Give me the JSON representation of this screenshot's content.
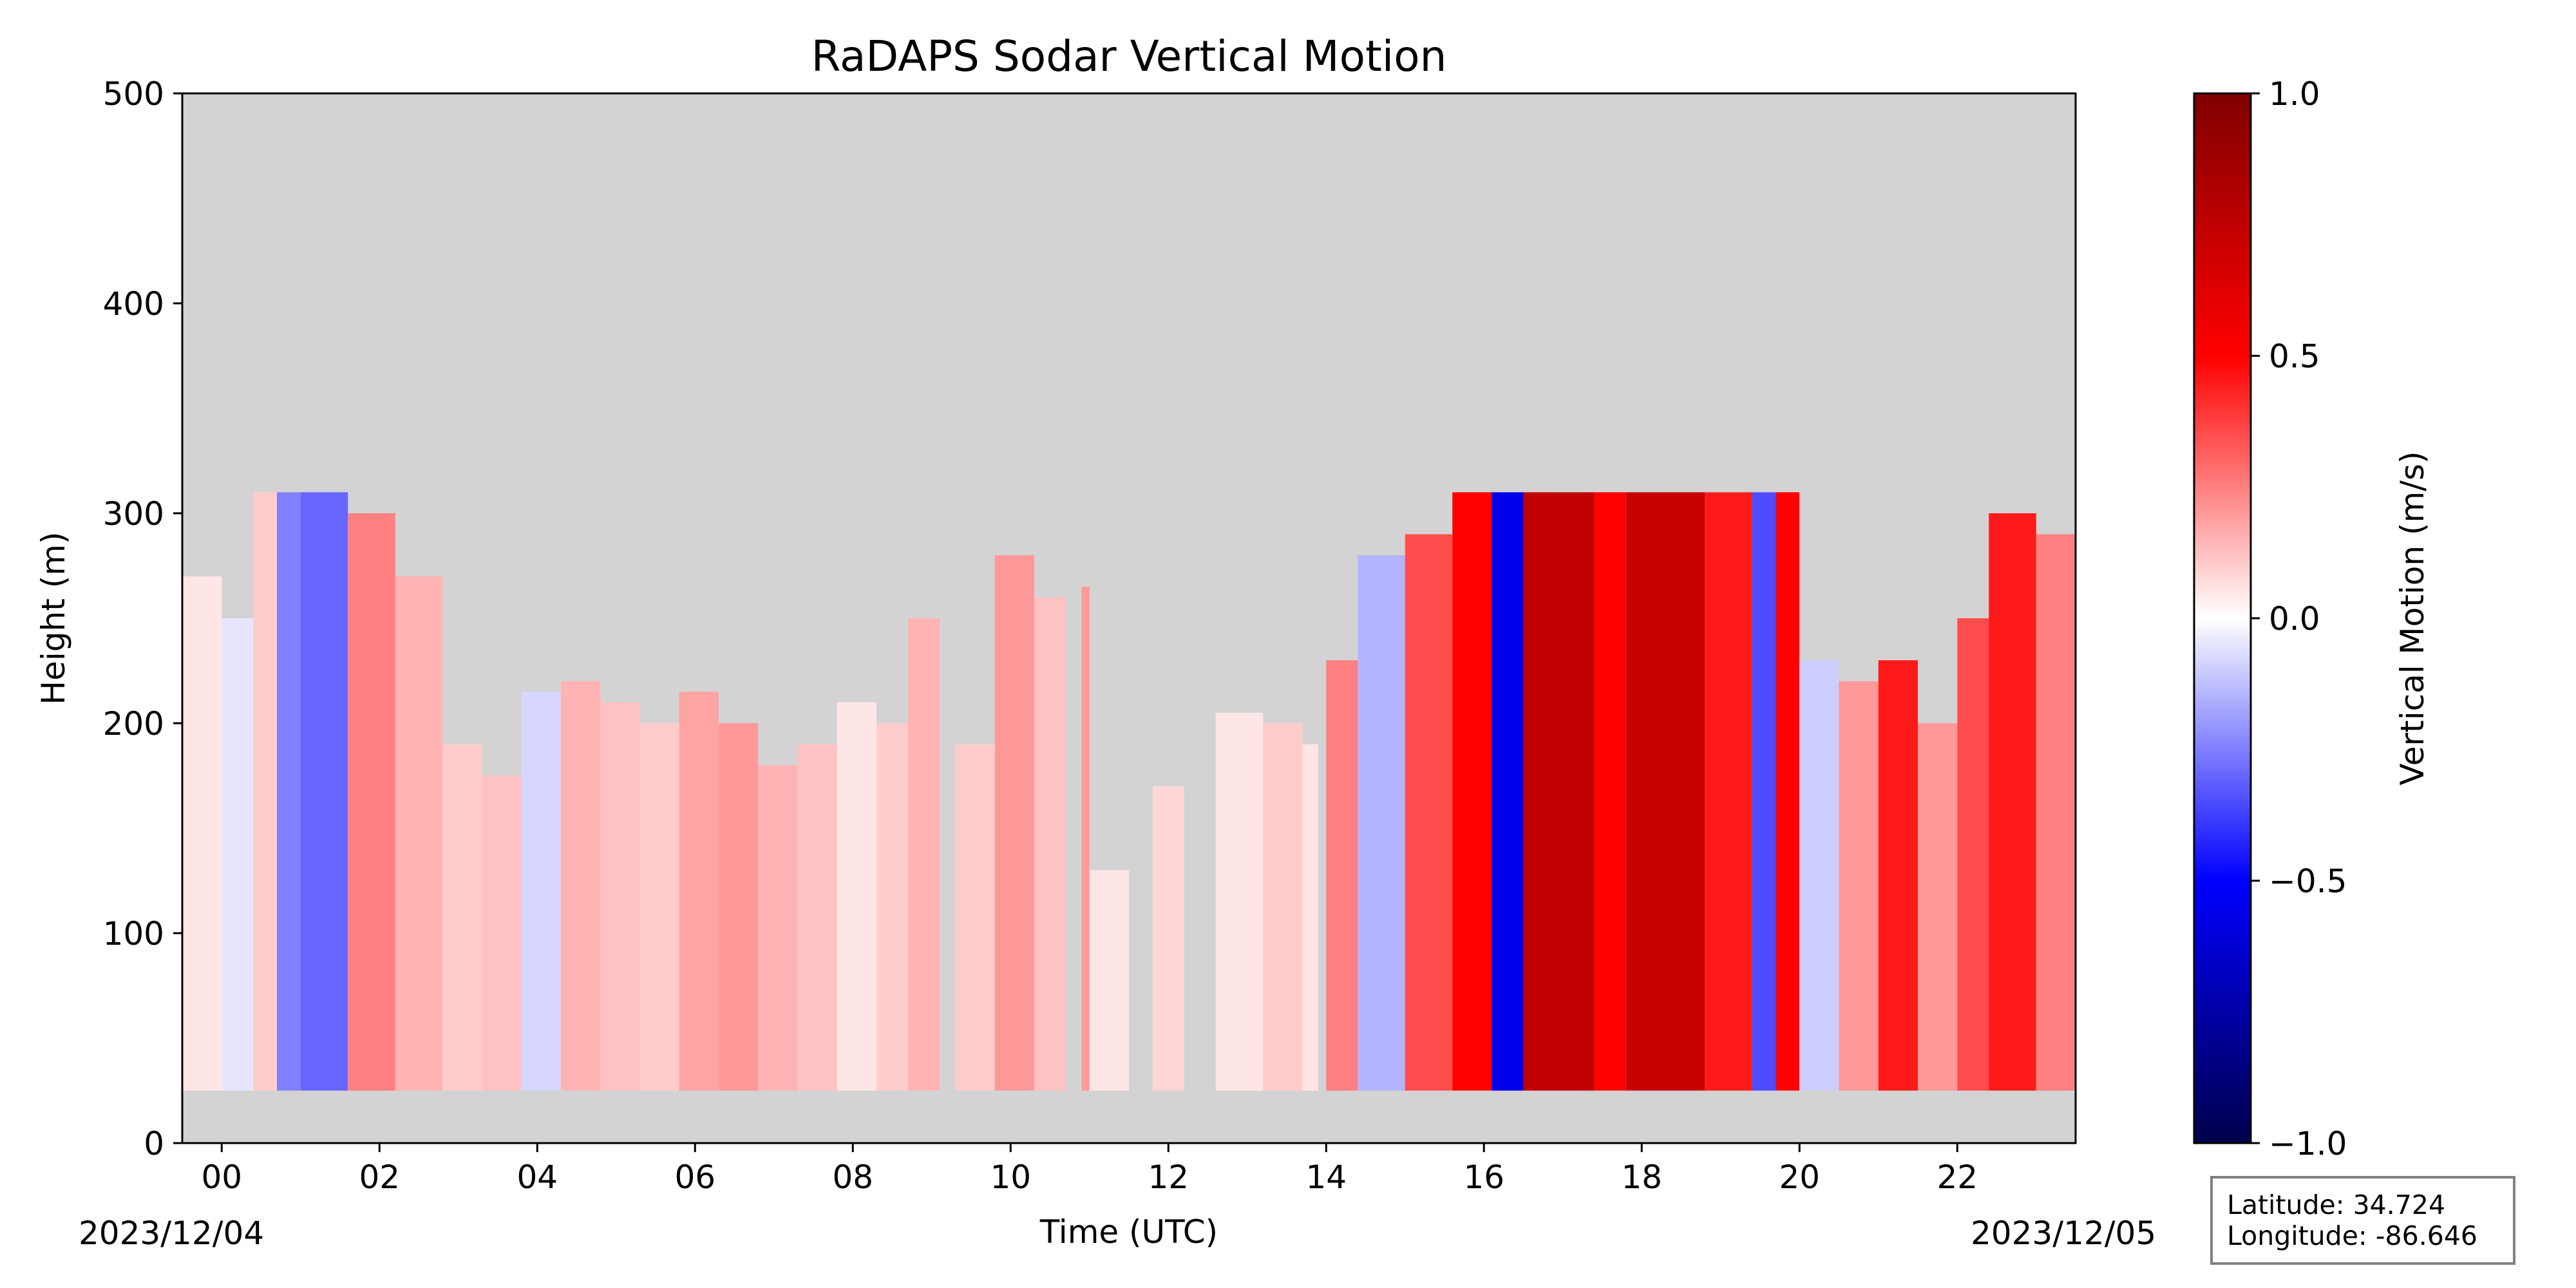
{
  "chart_data": {
    "type": "heatmap",
    "title": "RaDAPS Sodar Vertical Motion",
    "xlabel": "Time (UTC)",
    "ylabel": "Height (m)",
    "x_unit": "hour UTC",
    "xlim": [
      -0.5,
      23.5
    ],
    "ylim": [
      0,
      500
    ],
    "x_ticks": [
      0,
      2,
      4,
      6,
      8,
      10,
      12,
      14,
      16,
      18,
      20,
      22
    ],
    "x_tick_labels": [
      "00",
      "02",
      "04",
      "06",
      "08",
      "10",
      "12",
      "14",
      "16",
      "18",
      "20",
      "22"
    ],
    "y_ticks": [
      0,
      100,
      200,
      300,
      400,
      500
    ],
    "y_tick_labels": [
      "0",
      "100",
      "200",
      "300",
      "400",
      "500"
    ],
    "start_date_label": "2023/12/04",
    "end_date_label": "2023/12/05",
    "background_color": "#d3d3d3",
    "colormap": "seismic",
    "colorbar": {
      "label": "Vertical Motion (m/s)",
      "range": [
        -1.0,
        1.0
      ],
      "ticks": [
        1.0,
        0.5,
        0.0,
        -0.5,
        -1.0
      ],
      "tick_labels": [
        "1.0",
        "0.5",
        "0.0",
        "−0.5",
        "−1.0"
      ]
    },
    "data_bottom_height": 25,
    "columns": [
      {
        "t0": -0.5,
        "t1": 0.0,
        "top": 270,
        "w": 0.05
      },
      {
        "t0": 0.0,
        "t1": 0.4,
        "top": 250,
        "w": -0.05
      },
      {
        "t0": 0.4,
        "t1": 0.7,
        "top": 310,
        "w": 0.1
      },
      {
        "t0": 0.7,
        "t1": 1.0,
        "top": 310,
        "w": -0.25
      },
      {
        "t0": 1.0,
        "t1": 1.6,
        "top": 310,
        "w": -0.3
      },
      {
        "t0": 1.6,
        "t1": 2.2,
        "top": 300,
        "w": 0.25
      },
      {
        "t0": 2.2,
        "t1": 2.8,
        "top": 270,
        "w": 0.15
      },
      {
        "t0": 2.8,
        "t1": 3.3,
        "top": 190,
        "w": 0.1
      },
      {
        "t0": 3.3,
        "t1": 3.8,
        "top": 175,
        "w": 0.12
      },
      {
        "t0": 3.8,
        "t1": 4.3,
        "top": 215,
        "w": -0.08
      },
      {
        "t0": 4.3,
        "t1": 4.8,
        "top": 220,
        "w": 0.15
      },
      {
        "t0": 4.8,
        "t1": 5.3,
        "top": 210,
        "w": 0.12
      },
      {
        "t0": 5.3,
        "t1": 5.8,
        "top": 200,
        "w": 0.1
      },
      {
        "t0": 5.8,
        "t1": 6.3,
        "top": 215,
        "w": 0.18
      },
      {
        "t0": 6.3,
        "t1": 6.8,
        "top": 200,
        "w": 0.2
      },
      {
        "t0": 6.8,
        "t1": 7.3,
        "top": 180,
        "w": 0.15
      },
      {
        "t0": 7.3,
        "t1": 7.8,
        "top": 190,
        "w": 0.12
      },
      {
        "t0": 7.8,
        "t1": 8.3,
        "top": 210,
        "w": 0.05
      },
      {
        "t0": 8.3,
        "t1": 8.7,
        "top": 200,
        "w": 0.1
      },
      {
        "t0": 8.7,
        "t1": 9.1,
        "top": 250,
        "w": 0.15
      },
      {
        "t0": 9.3,
        "t1": 9.8,
        "top": 190,
        "w": 0.1
      },
      {
        "t0": 9.8,
        "t1": 10.3,
        "top": 280,
        "w": 0.2
      },
      {
        "t0": 10.3,
        "t1": 10.7,
        "top": 260,
        "w": 0.12
      },
      {
        "t0": 10.9,
        "t1": 11.0,
        "top": 265,
        "w": 0.2
      },
      {
        "t0": 11.0,
        "t1": 11.5,
        "top": 130,
        "w": 0.05
      },
      {
        "t0": 11.8,
        "t1": 12.2,
        "top": 170,
        "w": 0.08
      },
      {
        "t0": 12.6,
        "t1": 13.2,
        "top": 205,
        "w": 0.05
      },
      {
        "t0": 13.2,
        "t1": 13.7,
        "top": 200,
        "w": 0.1
      },
      {
        "t0": 13.7,
        "t1": 13.9,
        "top": 190,
        "w": 0.05
      },
      {
        "t0": 14.0,
        "t1": 14.4,
        "top": 230,
        "w": 0.25
      },
      {
        "t0": 14.4,
        "t1": 15.0,
        "top": 280,
        "w": -0.15
      },
      {
        "t0": 15.0,
        "t1": 15.6,
        "top": 290,
        "w": 0.35
      },
      {
        "t0": 15.6,
        "t1": 16.1,
        "top": 310,
        "w": 0.5
      },
      {
        "t0": 16.1,
        "t1": 16.5,
        "top": 310,
        "w": -0.55
      },
      {
        "t0": 16.5,
        "t1": 17.4,
        "top": 310,
        "w": 0.75
      },
      {
        "t0": 17.4,
        "t1": 17.8,
        "top": 310,
        "w": 0.5
      },
      {
        "t0": 17.8,
        "t1": 18.8,
        "top": 310,
        "w": 0.72
      },
      {
        "t0": 18.8,
        "t1": 19.4,
        "top": 310,
        "w": 0.45
      },
      {
        "t0": 19.4,
        "t1": 19.7,
        "top": 310,
        "w": -0.35
      },
      {
        "t0": 19.7,
        "t1": 20.0,
        "top": 310,
        "w": 0.5
      },
      {
        "t0": 20.0,
        "t1": 20.5,
        "top": 230,
        "w": -0.1
      },
      {
        "t0": 20.5,
        "t1": 21.0,
        "top": 220,
        "w": 0.2
      },
      {
        "t0": 21.0,
        "t1": 21.5,
        "top": 230,
        "w": 0.45
      },
      {
        "t0": 21.5,
        "t1": 22.0,
        "top": 200,
        "w": 0.2
      },
      {
        "t0": 22.0,
        "t1": 22.4,
        "top": 250,
        "w": 0.35
      },
      {
        "t0": 22.4,
        "t1": 23.0,
        "top": 300,
        "w": 0.45
      },
      {
        "t0": 23.0,
        "t1": 23.5,
        "top": 290,
        "w": 0.25
      }
    ]
  },
  "info_box": {
    "latitude": "Latitude: 34.724",
    "longitude": "Longitude: -86.646"
  }
}
